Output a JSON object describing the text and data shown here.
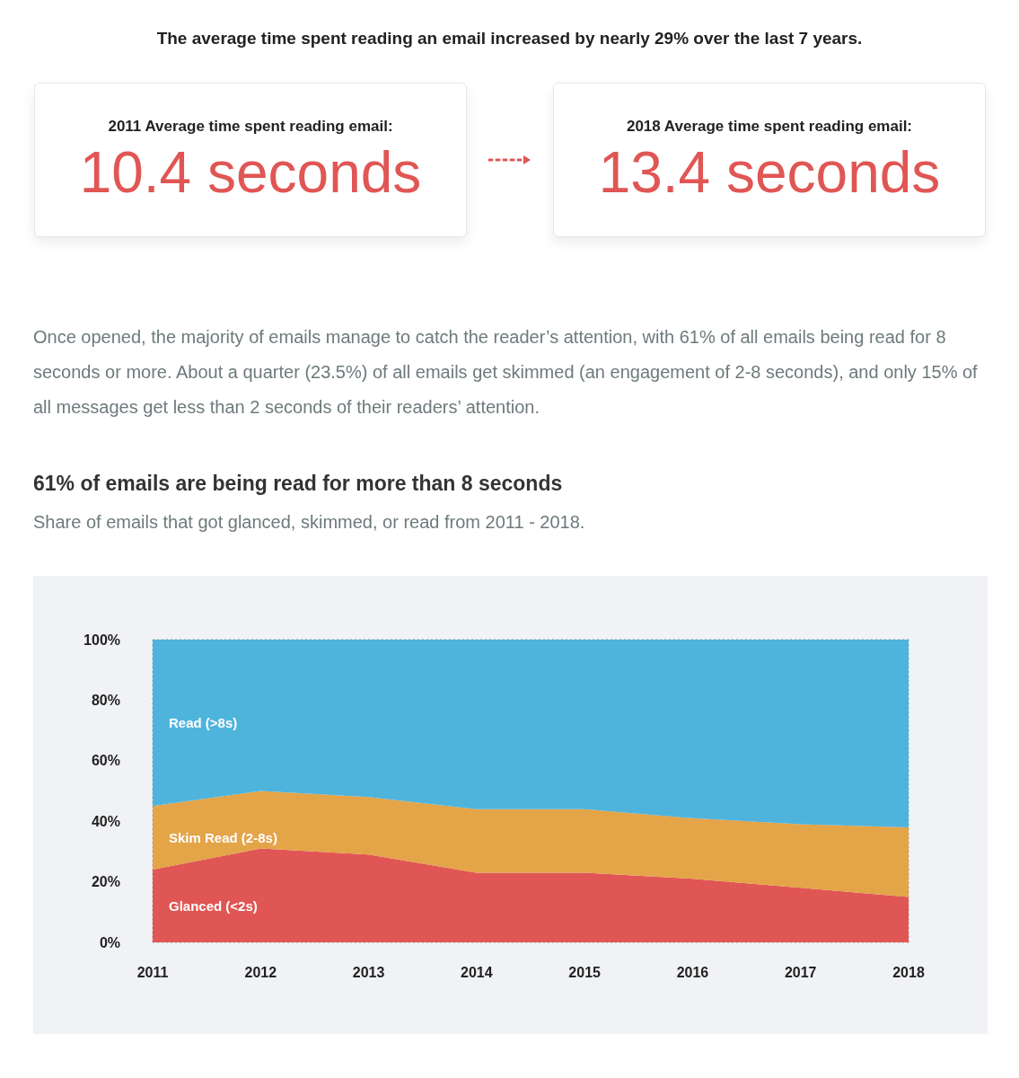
{
  "chart_data": {
    "type": "area",
    "title": "61% of emails are being read for more than 8 seconds",
    "subtitle": "Share of emails that got glanced, skimmed, or read from 2011 - 2018.",
    "annotations": [
      "The average time spent reading an email increased by nearly 29% over the last 7 years.",
      "2011 Average time spent reading email:",
      "2018 Average time spent reading email:",
      "10.4 seconds",
      "13.4 seconds",
      "Once opened, the majority of emails manage to catch the reader’s attention, with 61% of all emails being read for 8 seconds or more. About a quarter (23.5%) of all emails get skimmed (an engagement of 2-8 seconds), and only 15% of all messages get less than 2 seconds of their readers’ attention."
    ],
    "categories": [
      "2011",
      "2012",
      "2013",
      "2014",
      "2015",
      "2016",
      "2017",
      "2018"
    ],
    "stacked": true,
    "series": [
      {
        "name": "Glanced (<2s)",
        "color": "#e05654",
        "values": [
          24,
          31,
          29,
          23,
          23,
          21,
          18,
          15
        ]
      },
      {
        "name": "Skim Read (2-8s)",
        "color": "#e4a448",
        "values": [
          21,
          19,
          19,
          21,
          21,
          20,
          21,
          23
        ]
      },
      {
        "name": "Read (>8s)",
        "color": "#4fb4dc",
        "values": [
          55,
          50,
          52,
          56,
          56,
          59,
          61,
          62
        ]
      }
    ],
    "ylim": [
      0,
      100
    ],
    "yticks": [
      {
        "value": 0,
        "label": "0%"
      },
      {
        "value": 20,
        "label": "20%"
      },
      {
        "value": 40,
        "label": "40%"
      },
      {
        "value": 60,
        "label": "60%"
      },
      {
        "value": 80,
        "label": "80%"
      },
      {
        "value": 100,
        "label": "100%"
      }
    ],
    "grid": true,
    "legend": false
  }
}
